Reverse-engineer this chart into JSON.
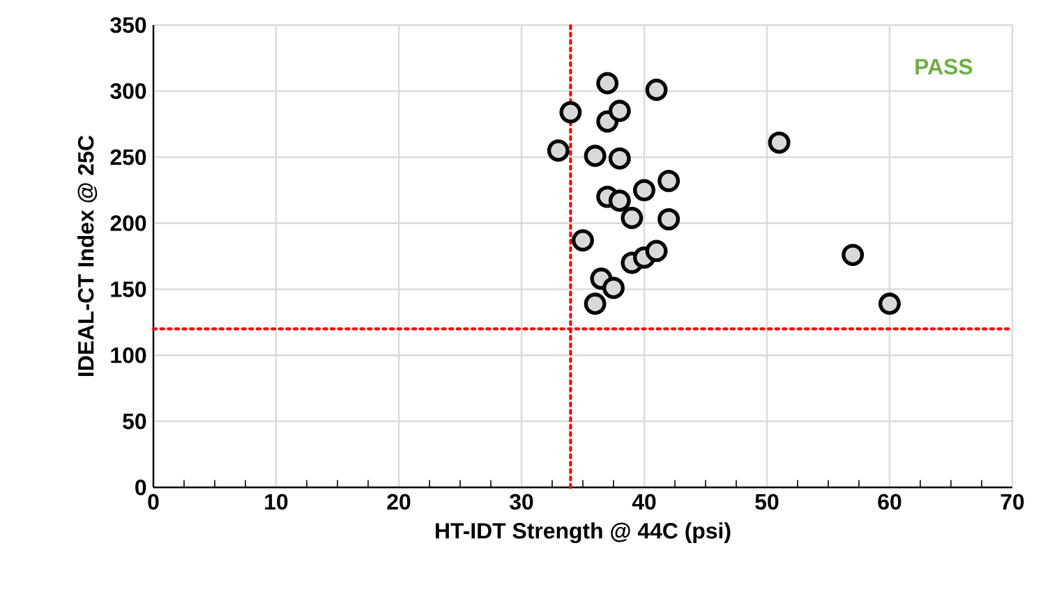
{
  "chart_data": {
    "type": "scatter",
    "xlabel": "HT-IDT Strength @ 44C (psi)",
    "ylabel": "IDEAL-CT Index @ 25C",
    "x": [
      33,
      34,
      35,
      36,
      36,
      36.5,
      37,
      37,
      37,
      37.5,
      38,
      38,
      38,
      39,
      39,
      40,
      40,
      41,
      41,
      42,
      42,
      51,
      57,
      60
    ],
    "values": [
      255,
      284,
      187,
      139,
      251,
      158,
      306,
      277,
      220,
      151,
      285,
      249,
      217,
      204,
      170,
      225,
      174,
      301,
      179,
      232,
      203,
      261,
      176,
      139
    ],
    "color": "#d9d9d9",
    "marker": "circle",
    "xlim": [
      0,
      70
    ],
    "xticks": [
      0,
      10,
      20,
      30,
      40,
      50,
      60,
      70
    ],
    "ylim": [
      0,
      350
    ],
    "yticks": [
      0,
      50,
      100,
      150,
      200,
      250,
      300,
      350
    ],
    "grid": true,
    "ref_lines": [
      {
        "axis": "x",
        "value": 34,
        "color": "#ff0000",
        "line_style": "dotted"
      },
      {
        "axis": "y",
        "value": 120,
        "color": "#ff0000",
        "line_style": "dotted"
      }
    ],
    "annotations": [
      "PASS"
    ]
  }
}
